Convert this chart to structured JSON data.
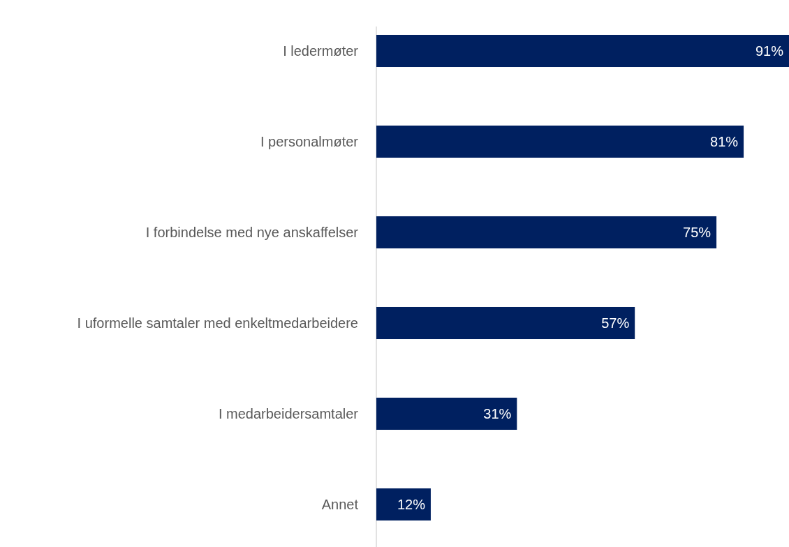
{
  "chart_data": {
    "type": "bar",
    "orientation": "horizontal",
    "categories": [
      "I ledermøter",
      "I personalmøter",
      "I forbindelse med nye anskaffelser",
      "I uformelle samtaler med enkeltmedarbeidere",
      "I medarbeidersamtaler",
      "Annet"
    ],
    "values": [
      91,
      81,
      75,
      57,
      31,
      12
    ],
    "color": "#002060",
    "value_labels": [
      "91%",
      "81%",
      "75%",
      "57%",
      "31%",
      "12%"
    ]
  }
}
